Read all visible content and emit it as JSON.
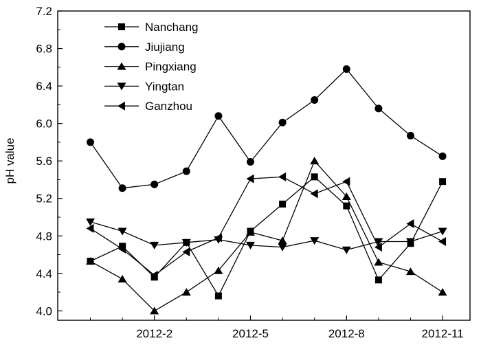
{
  "chart_data": {
    "type": "line",
    "ylabel": "pH value",
    "xlabel": "",
    "x_tick_labels": [
      "2012-2",
      "2012-5",
      "2012-8",
      "2012-11"
    ],
    "y_tick_labels": [
      "4.0",
      "4.4",
      "4.8",
      "5.2",
      "5.6",
      "6.0",
      "6.4",
      "6.8",
      "7.2"
    ],
    "ylim": [
      3.9,
      7.2
    ],
    "x": [
      "2011-12",
      "2012-1",
      "2012-2",
      "2012-3",
      "2012-4",
      "2012-5",
      "2012-6",
      "2012-7",
      "2012-8",
      "2012-9",
      "2012-10",
      "2012-11"
    ],
    "legend_position": "top-left",
    "series": [
      {
        "name": "Nanchang",
        "marker": "square",
        "values": [
          4.53,
          4.69,
          4.36,
          4.73,
          4.16,
          4.85,
          5.14,
          5.43,
          5.12,
          4.33,
          4.72,
          5.38
        ]
      },
      {
        "name": "Jiujiang",
        "marker": "circle",
        "values": [
          5.8,
          5.31,
          5.35,
          5.49,
          6.08,
          5.59,
          6.01,
          6.25,
          6.58,
          6.16,
          5.87,
          5.65
        ]
      },
      {
        "name": "Pingxiang",
        "marker": "triangle-up",
        "values": [
          4.53,
          4.34,
          4.0,
          4.2,
          4.43,
          4.84,
          4.75,
          5.6,
          5.22,
          4.52,
          4.42,
          4.2
        ]
      },
      {
        "name": "Yingtan",
        "marker": "triangle-down",
        "values": [
          4.95,
          4.85,
          4.7,
          4.73,
          4.76,
          4.7,
          4.68,
          4.75,
          4.65,
          4.74,
          4.74,
          4.85
        ]
      },
      {
        "name": "Ganzhou",
        "marker": "triangle-left",
        "values": [
          4.88,
          4.66,
          4.38,
          4.63,
          4.78,
          5.41,
          5.43,
          5.25,
          5.38,
          4.68,
          4.93,
          4.74
        ]
      }
    ]
  }
}
